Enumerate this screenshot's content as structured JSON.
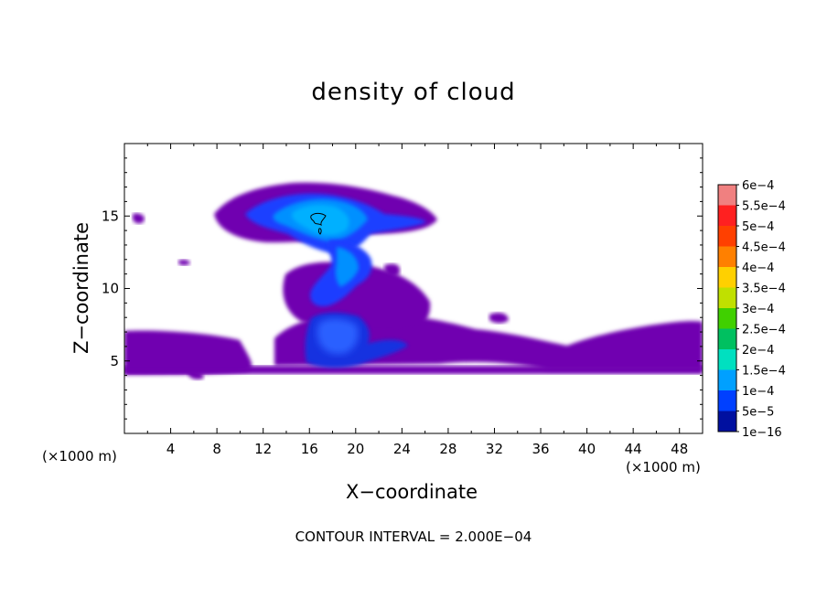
{
  "chart_data": {
    "type": "heatmap",
    "title": "density of cloud",
    "xlabel": "X−coordinate",
    "ylabel": "Z−coordinate",
    "x_unit_label": "(×1000 m)",
    "xlim": [
      0,
      50
    ],
    "ylim": [
      0,
      20
    ],
    "x_ticks": [
      4,
      8,
      12,
      16,
      20,
      24,
      28,
      32,
      36,
      40,
      44,
      48
    ],
    "y_ticks": [
      5,
      10,
      15
    ],
    "colorbar": {
      "labels": [
        "6e−4",
        "5.5e−4",
        "5e−4",
        "4.5e−4",
        "4e−4",
        "3.5e−4",
        "3e−4",
        "2.5e−4",
        "2e−4",
        "1.5e−4",
        "1e−4",
        "5e−5",
        "1e−16"
      ],
      "colors": [
        "#f08080",
        "#ff2020",
        "#ff4000",
        "#ff8000",
        "#ffd000",
        "#c0e000",
        "#40d000",
        "#00c060",
        "#00e0c0",
        "#00a0ff",
        "#0040ff",
        "#0010a0",
        "#7000b0"
      ]
    },
    "contour_interval_text": "CONTOUR INTERVAL = 2.000E−04"
  }
}
